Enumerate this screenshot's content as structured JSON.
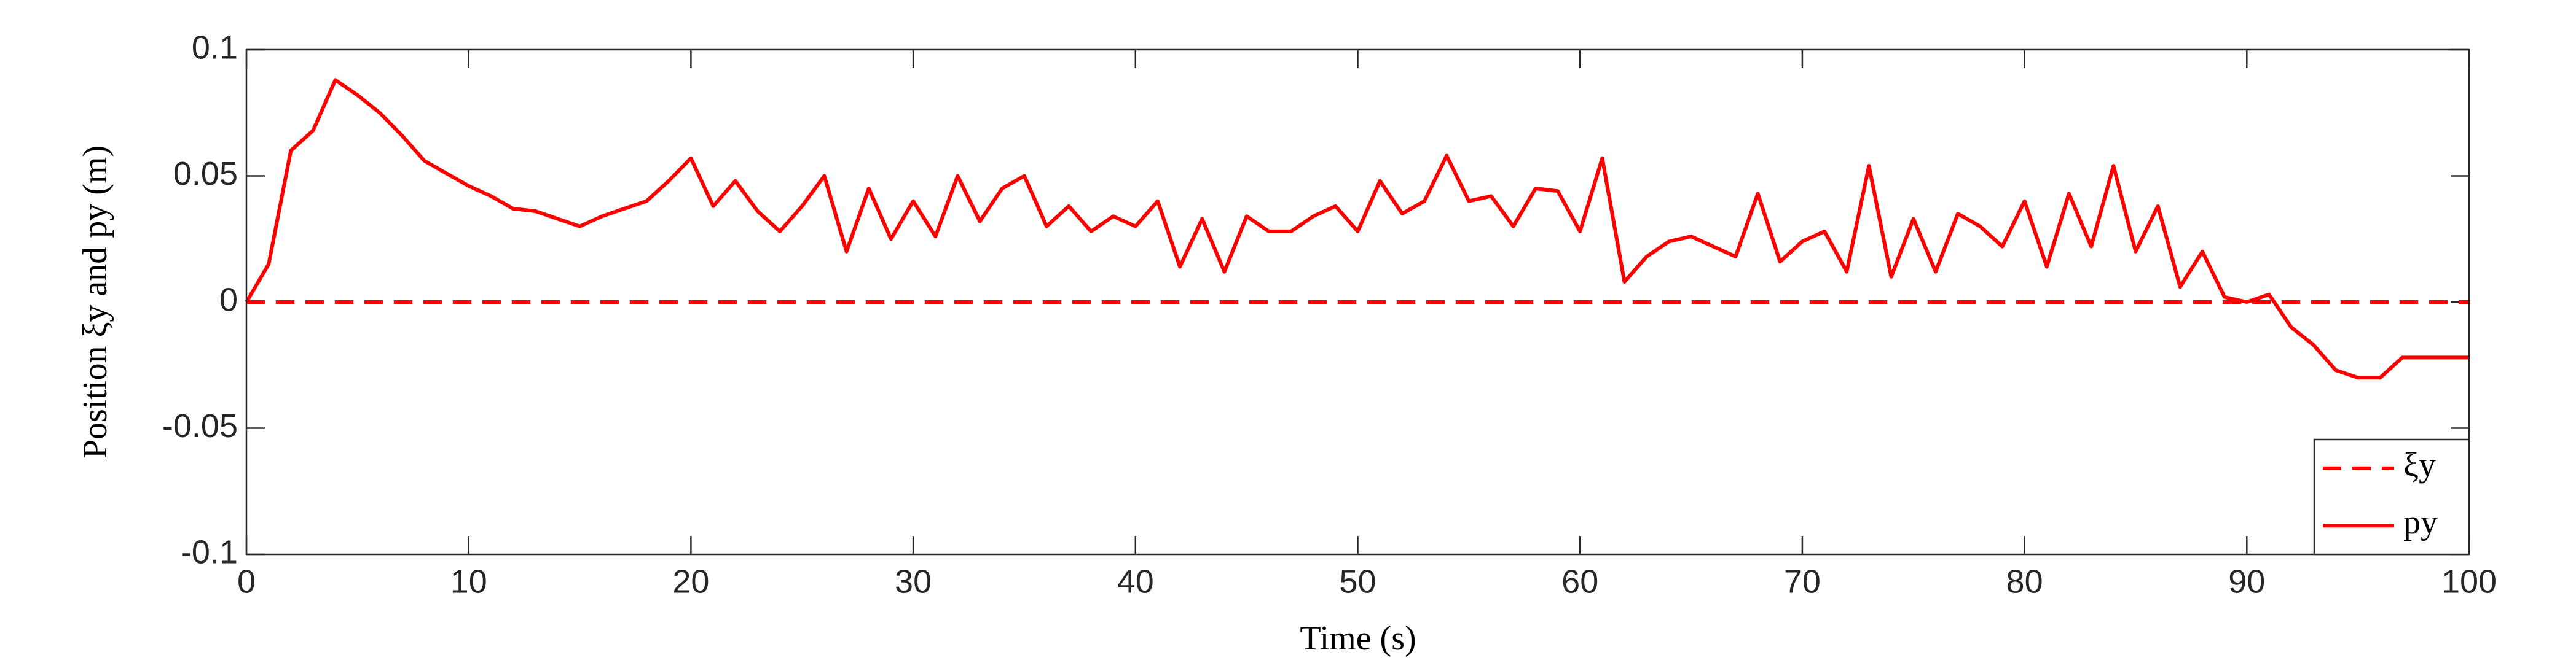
{
  "chart_data": {
    "type": "line",
    "xlabel": "Time (s)",
    "ylabel": "Position ξy and py (m)",
    "x": [
      0,
      1,
      2,
      3,
      4,
      5,
      6,
      7,
      8,
      9,
      10,
      11,
      12,
      13,
      14,
      15,
      16,
      17,
      18,
      19,
      20,
      21,
      22,
      23,
      24,
      25,
      26,
      27,
      28,
      29,
      30,
      31,
      32,
      33,
      34,
      35,
      36,
      37,
      38,
      39,
      40,
      41,
      42,
      43,
      44,
      45,
      46,
      47,
      48,
      49,
      50,
      51,
      52,
      53,
      54,
      55,
      56,
      57,
      58,
      59,
      60,
      61,
      62,
      63,
      64,
      65,
      66,
      67,
      68,
      69,
      70,
      71,
      72,
      73,
      74,
      75,
      76,
      77,
      78,
      79,
      80,
      81,
      82,
      83,
      84,
      85,
      86,
      87,
      88,
      89,
      90,
      91,
      92,
      93,
      94,
      95,
      96,
      97,
      98,
      99,
      100
    ],
    "series": [
      {
        "name": "ξy",
        "color": "#ff0000",
        "dashed": true,
        "values": [
          0,
          0,
          0,
          0,
          0,
          0,
          0,
          0,
          0,
          0,
          0,
          0,
          0,
          0,
          0,
          0,
          0,
          0,
          0,
          0,
          0,
          0,
          0,
          0,
          0,
          0,
          0,
          0,
          0,
          0,
          0,
          0,
          0,
          0,
          0,
          0,
          0,
          0,
          0,
          0,
          0,
          0,
          0,
          0,
          0,
          0,
          0,
          0,
          0,
          0,
          0,
          0,
          0,
          0,
          0,
          0,
          0,
          0,
          0,
          0,
          0,
          0,
          0,
          0,
          0,
          0,
          0,
          0,
          0,
          0,
          0,
          0,
          0,
          0,
          0,
          0,
          0,
          0,
          0,
          0,
          0,
          0,
          0,
          0,
          0,
          0,
          0,
          0,
          0,
          0,
          0,
          0,
          0,
          0,
          0,
          0,
          0,
          0,
          0,
          0,
          0
        ]
      },
      {
        "name": "py",
        "color": "#ff0000",
        "dashed": false,
        "values": [
          0,
          0.015,
          0.06,
          0.068,
          0.088,
          0.082,
          0.075,
          0.066,
          0.056,
          0.051,
          0.046,
          0.042,
          0.037,
          0.036,
          0.033,
          0.03,
          0.034,
          0.037,
          0.04,
          0.048,
          0.057,
          0.038,
          0.048,
          0.036,
          0.028,
          0.038,
          0.05,
          0.02,
          0.045,
          0.025,
          0.04,
          0.026,
          0.05,
          0.032,
          0.045,
          0.05,
          0.03,
          0.038,
          0.028,
          0.034,
          0.03,
          0.04,
          0.014,
          0.033,
          0.012,
          0.034,
          0.028,
          0.028,
          0.034,
          0.038,
          0.028,
          0.048,
          0.035,
          0.04,
          0.058,
          0.04,
          0.042,
          0.03,
          0.045,
          0.044,
          0.028,
          0.057,
          0.008,
          0.018,
          0.024,
          0.026,
          0.022,
          0.018,
          0.043,
          0.016,
          0.024,
          0.028,
          0.012,
          0.054,
          0.01,
          0.033,
          0.012,
          0.035,
          0.03,
          0.022,
          0.04,
          0.014,
          0.043,
          0.022,
          0.054,
          0.02,
          0.038,
          0.006,
          0.02,
          0.002,
          0,
          0.003,
          -0.01,
          -0.017,
          -0.027,
          -0.03,
          -0.03,
          -0.022,
          -0.022,
          -0.022,
          -0.022
        ]
      }
    ],
    "xlim": [
      0,
      100
    ],
    "xticks": [
      0,
      10,
      20,
      30,
      40,
      50,
      60,
      70,
      80,
      90,
      100
    ],
    "ylim": [
      -0.1,
      0.1
    ],
    "yticks": [
      -0.1,
      -0.05,
      0,
      0.05,
      0.1
    ],
    "grid": false,
    "legend": "lower right"
  }
}
